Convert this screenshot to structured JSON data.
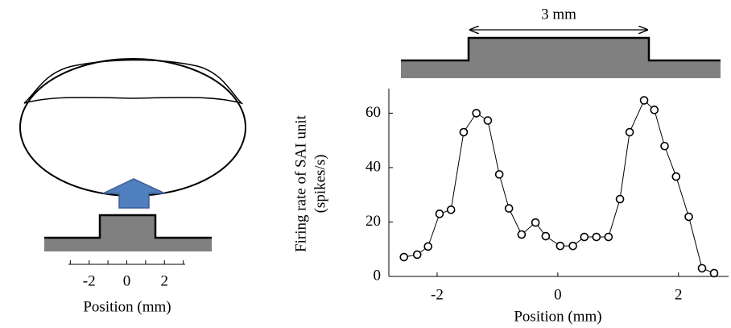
{
  "diagram": {
    "xlabel": "Position (mm)",
    "xlim": [
      -3.1,
      3.1
    ],
    "xticks": [
      -2,
      0,
      2
    ],
    "minor_xticks": [
      -3,
      -1,
      1,
      3
    ]
  },
  "chart_data": {
    "type": "line",
    "annotation": "3 mm",
    "xlabel": "Position (mm)",
    "ylabel": [
      "Firing rate of SAI unit",
      "(spikes/s)"
    ],
    "x": [
      -2.55,
      -2.33,
      -2.15,
      -1.96,
      -1.77,
      -1.56,
      -1.35,
      -1.16,
      -0.97,
      -0.81,
      -0.6,
      -0.37,
      -0.2,
      0.04,
      0.25,
      0.44,
      0.64,
      0.84,
      1.03,
      1.19,
      1.43,
      1.6,
      1.77,
      1.96,
      2.17,
      2.39,
      2.59
    ],
    "values": [
      7.1,
      8,
      11,
      23,
      24.5,
      53,
      60,
      57.3,
      37.5,
      25,
      15.4,
      19.8,
      14.8,
      11.2,
      11.2,
      14.5,
      14.5,
      14.5,
      28.4,
      53,
      64.7,
      61.2,
      47.9,
      36.7,
      21.9,
      3,
      1.2
    ],
    "color": "#000000",
    "xlim": [
      -2.8,
      2.83
    ],
    "ylim": [
      0,
      69
    ],
    "xticks": [
      -2,
      0,
      2
    ],
    "yticks": [
      0,
      20,
      40,
      60
    ]
  }
}
